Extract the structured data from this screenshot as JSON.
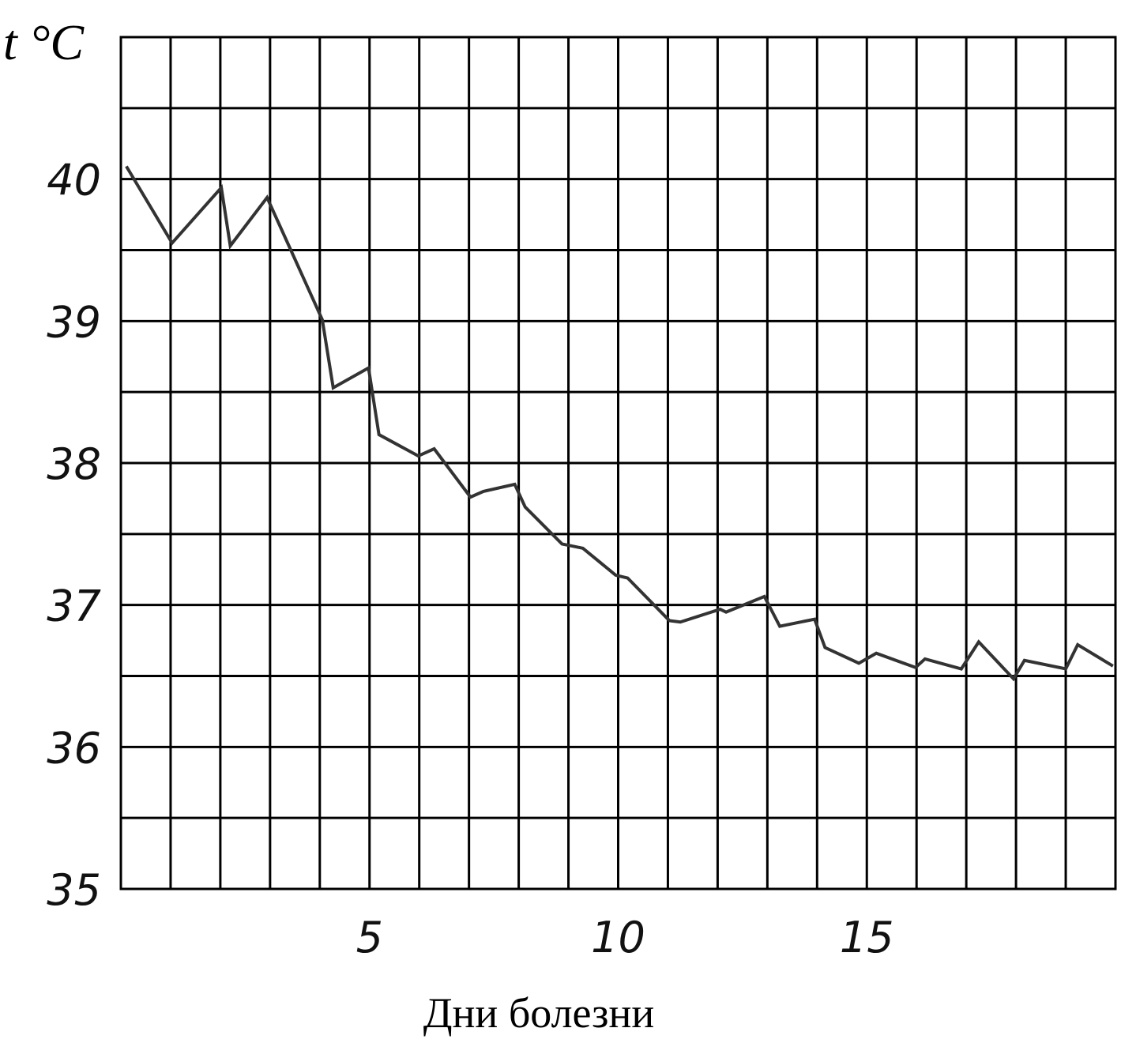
{
  "chart_data": {
    "type": "line",
    "y_label": "t °C",
    "x_label": "Дни болезни",
    "xlim": [
      0,
      20
    ],
    "xticks": [
      5,
      10,
      15
    ],
    "ylim": [
      35,
      41
    ],
    "yticks": [
      35,
      36,
      37,
      38,
      39,
      40
    ],
    "grid": true,
    "series": [
      {
        "color": "#333333",
        "x": [
          0.11,
          1.03,
          2.02,
          2.2,
          2.94,
          4.05,
          4.27,
          4.98,
          5.19,
          5.98,
          6.3,
          7.03,
          7.29,
          7.92,
          8.13,
          8.87,
          9.29,
          9.95,
          10.19,
          11.03,
          11.25,
          12.05,
          12.17,
          12.94,
          13.25,
          13.95,
          14.16,
          14.84,
          15.19,
          15.98,
          16.17,
          16.9,
          17.25,
          17.95,
          18.17,
          19.0,
          19.24,
          19.95
        ],
        "values": [
          40.09,
          39.55,
          39.94,
          39.53,
          39.87,
          39.01,
          38.53,
          38.67,
          38.2,
          38.05,
          38.1,
          37.76,
          37.8,
          37.85,
          37.69,
          37.43,
          37.4,
          37.21,
          37.19,
          36.89,
          36.88,
          36.97,
          36.95,
          37.06,
          36.85,
          36.9,
          36.7,
          36.59,
          36.66,
          36.56,
          36.62,
          36.55,
          36.74,
          36.48,
          36.61,
          36.55,
          36.72,
          36.57
        ]
      }
    ]
  }
}
